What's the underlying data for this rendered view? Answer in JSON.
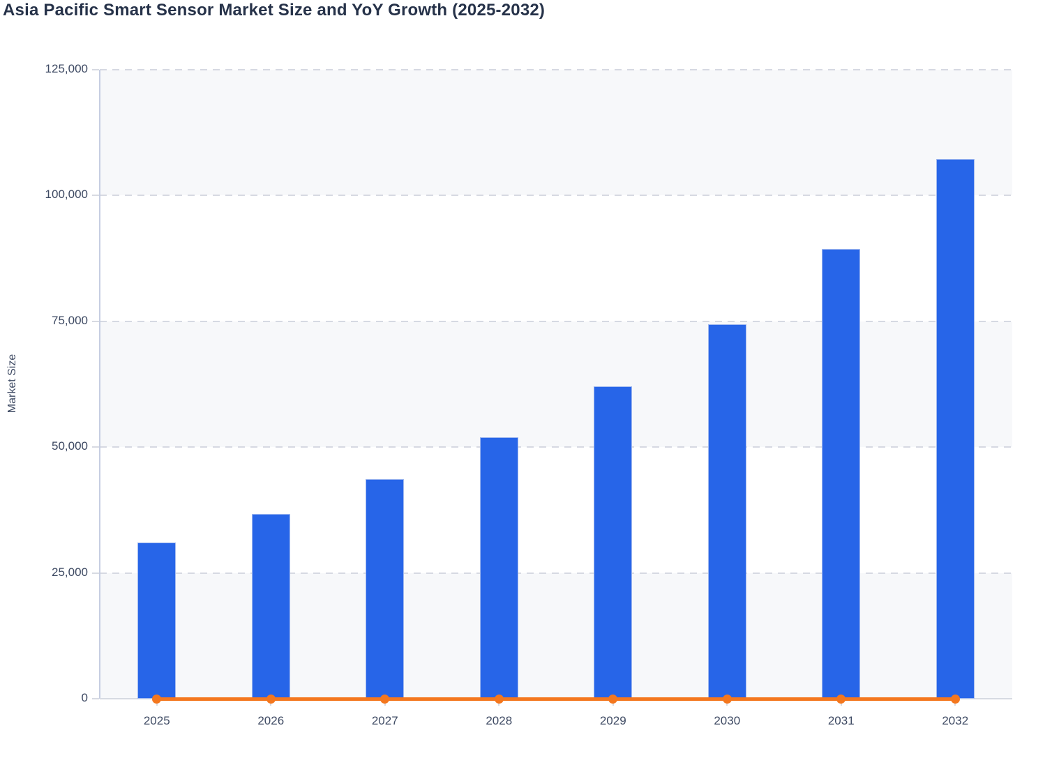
{
  "colors": {
    "bar_fill": "#2765e8",
    "bar_border": "#bac9f0",
    "line": "#f4771e",
    "band_gray": "#f7f8fa",
    "band_white": "#ffffff",
    "gridline": "#d6d9e2",
    "axis_line": "#c6cee2",
    "baseline": "#d7dae2",
    "tick_text": "#3e4a63",
    "title_text": "#263249"
  },
  "chart_data": {
    "type": "bar",
    "combo": "bar + line",
    "title": "Asia Pacific Smart Sensor Market Size and YoY Growth (2025-2032)",
    "xlabel": "",
    "ylabel": "Market Size",
    "categories": [
      "2025",
      "2026",
      "2027",
      "2028",
      "2029",
      "2030",
      "2031",
      "2032"
    ],
    "series": [
      {
        "name": "Market Size",
        "type": "bar",
        "color": "#2765e8",
        "values": [
          31100,
          36750,
          43700,
          52000,
          62100,
          74450,
          89400,
          107300
        ],
        "values_estimated_from_gridlines": true
      },
      {
        "name": "YoY Growth",
        "type": "line",
        "color": "#f4771e",
        "values": [
          0,
          0,
          0,
          0,
          0,
          0,
          0,
          0
        ],
        "note": "Line with markers renders flat on the 0 baseline of the visible left axis; actual YoY values are not labeled (secondary axis not shown)."
      }
    ],
    "ylim": [
      0,
      125000
    ],
    "y_tick_values": [
      0,
      25000,
      50000,
      75000,
      100000,
      125000
    ],
    "y_tick_labels": [
      "0",
      "25,000",
      "50,000",
      "75,000",
      "100,000",
      "125,000"
    ],
    "grid": "horizontal dashed gridlines at each y tick",
    "plot_background": "alternating horizontal bands (gray/white) between gridlines",
    "legend": "none"
  }
}
